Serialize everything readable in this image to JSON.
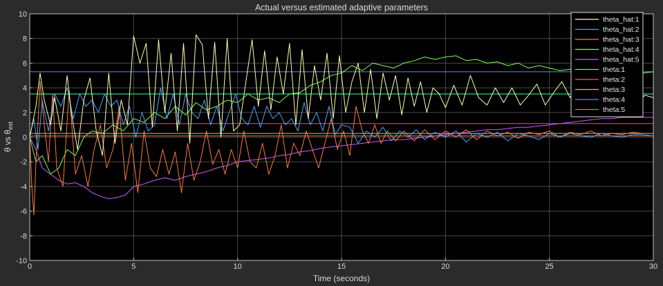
{
  "chart_data": {
    "type": "line",
    "title": "Actual versus estimated adaptive parameters",
    "xlabel": "Time (seconds)",
    "ylabel": "θ vs θ",
    "ylabel_subscript": "est",
    "xlim": [
      0,
      30
    ],
    "ylim": [
      -10,
      10
    ],
    "xticks": [
      0,
      5,
      10,
      15,
      20,
      25,
      30
    ],
    "yticks": [
      -10,
      -8,
      -6,
      -4,
      -2,
      0,
      2,
      4,
      6,
      8,
      10
    ],
    "grid": true,
    "legend_position": "top-right",
    "colors": {
      "figure_bg": "#2b2b2b",
      "axes_bg": "#000000",
      "grid": "#4a4a4a",
      "axes_edge": "#bfbfbf",
      "legend_bg": "#000000",
      "legend_edge": "#e0e0e0"
    },
    "series": [
      {
        "name": "theta_hat:1",
        "color": "#ffffb0",
        "x": [
          0,
          0.3,
          0.5,
          0.7,
          1.0,
          1.2,
          1.5,
          1.8,
          2.0,
          2.3,
          2.6,
          2.9,
          3.2,
          3.5,
          3.8,
          4.1,
          4.4,
          4.7,
          5.0,
          5.3,
          5.6,
          5.9,
          6.2,
          6.5,
          6.8,
          7.1,
          7.4,
          7.7,
          8.0,
          8.3,
          8.6,
          8.9,
          9.2,
          9.5,
          9.8,
          10.1,
          10.4,
          10.7,
          11.0,
          11.3,
          11.6,
          11.9,
          12.2,
          12.5,
          12.8,
          13.1,
          13.4,
          13.7,
          14.0,
          14.3,
          14.6,
          14.9,
          15.2,
          15.5,
          15.8,
          16.1,
          16.4,
          16.7,
          17.0,
          17.3,
          17.6,
          17.9,
          18.2,
          18.5,
          18.8,
          19.1,
          19.4,
          19.7,
          20.0,
          20.4,
          20.8,
          21.2,
          21.6,
          22.0,
          22.4,
          22.8,
          23.2,
          23.6,
          24.0,
          24.4,
          24.8,
          25.2,
          25.6,
          26.0,
          26.4,
          26.8,
          27.2,
          27.6,
          28.0,
          28.4,
          28.8,
          29.2,
          29.6,
          30.0
        ],
        "values": [
          0,
          2.5,
          5.2,
          3.0,
          1.0,
          3.2,
          0.5,
          5.0,
          2.0,
          -1.0,
          3.0,
          4.8,
          0.5,
          -1.5,
          5.2,
          -0.5,
          3.0,
          1.0,
          8.2,
          6.0,
          7.6,
          0.8,
          7.9,
          2.0,
          6.8,
          0.5,
          7.6,
          -0.5,
          8.3,
          7.5,
          1.5,
          7.7,
          0.0,
          8.0,
          0.5,
          1.0,
          4.5,
          7.9,
          2.5,
          7.0,
          2.2,
          6.5,
          3.5,
          7.6,
          1.0,
          7.1,
          1.5,
          5.8,
          3.0,
          6.8,
          1.5,
          6.6,
          2.0,
          4.5,
          6.0,
          2.0,
          5.5,
          1.5,
          5.2,
          3.0,
          5.0,
          1.8,
          4.8,
          2.5,
          4.5,
          2.0,
          4.0,
          3.5,
          2.4,
          4.2,
          2.6,
          5.0,
          3.2,
          2.6,
          4.0,
          2.8,
          4.0,
          2.6,
          3.4,
          4.3,
          2.6,
          3.6,
          4.5,
          3.2,
          4.4,
          2.6,
          3.6,
          4.0,
          2.5,
          3.2,
          3.6,
          2.8,
          3.4,
          3.2
        ]
      },
      {
        "name": "theta_hat:2",
        "color": "#4da6ff",
        "x": [
          0,
          0.2,
          0.4,
          0.6,
          0.9,
          1.2,
          1.5,
          1.8,
          2.1,
          2.4,
          2.7,
          3.0,
          3.3,
          3.6,
          3.9,
          4.2,
          4.5,
          4.8,
          5.1,
          5.4,
          5.7,
          6.0,
          6.3,
          6.6,
          6.9,
          7.2,
          7.5,
          7.8,
          8.1,
          8.4,
          8.7,
          9.0,
          9.3,
          9.6,
          9.9,
          10.2,
          10.5,
          10.8,
          11.1,
          11.4,
          11.7,
          12.0,
          12.3,
          12.6,
          12.9,
          13.2,
          13.5,
          13.8,
          14.1,
          14.4,
          14.7,
          15.0,
          15.4,
          15.8,
          16.2,
          16.6,
          17.0,
          17.4,
          17.8,
          18.2,
          18.6,
          19.0,
          19.5,
          20.0,
          20.5,
          21.0,
          21.5,
          22.0,
          22.5,
          23.0,
          23.5,
          24.0,
          24.5,
          25.0,
          25.5,
          26.0,
          26.5,
          27.0,
          27.5,
          28.0,
          28.5,
          29.0,
          29.5,
          30.0
        ],
        "values": [
          0,
          1.5,
          -1.0,
          3.0,
          0.5,
          3.5,
          2.5,
          4.0,
          1.5,
          3.5,
          2.5,
          3.0,
          2.0,
          3.5,
          2.5,
          3.0,
          1.0,
          2.5,
          0.0,
          2.0,
          0.5,
          1.0,
          4.0,
          1.5,
          3.5,
          1.0,
          3.5,
          2.0,
          1.5,
          3.0,
          1.0,
          2.5,
          0.5,
          2.0,
          3.5,
          1.5,
          1.0,
          2.5,
          0.8,
          2.5,
          1.5,
          2.0,
          1.0,
          1.5,
          0.5,
          2.8,
          1.0,
          2.0,
          0.5,
          2.5,
          0.2,
          1.0,
          0.8,
          -0.5,
          0.5,
          0.0,
          0.8,
          -0.3,
          0.5,
          0.0,
          0.6,
          -0.2,
          0.4,
          0.0,
          0.5,
          -0.4,
          0.3,
          0.0,
          0.4,
          -0.3,
          0.3,
          0.1,
          -0.2,
          0.3,
          0.0,
          0.3,
          0.1,
          0.0,
          0.3,
          0.1,
          0.0,
          0.2,
          0.2,
          0.1
        ]
      },
      {
        "name": "theta_hat:3",
        "color": "#ff7a3d",
        "x": [
          0,
          0.1,
          0.2,
          0.3,
          0.5,
          0.7,
          0.9,
          1.1,
          1.3,
          1.6,
          1.9,
          2.2,
          2.5,
          2.8,
          3.1,
          3.4,
          3.7,
          4.0,
          4.3,
          4.6,
          4.9,
          5.2,
          5.5,
          5.8,
          6.1,
          6.4,
          6.7,
          7.0,
          7.3,
          7.6,
          7.9,
          8.2,
          8.5,
          8.8,
          9.1,
          9.4,
          9.7,
          10.0,
          10.3,
          10.6,
          10.9,
          11.2,
          11.5,
          11.8,
          12.1,
          12.4,
          12.7,
          13.0,
          13.3,
          13.6,
          13.9,
          14.2,
          14.5,
          14.8,
          15.1,
          15.4,
          15.7,
          16.0,
          16.3,
          16.6,
          16.9,
          17.2,
          17.6,
          18.0,
          18.5,
          19.0,
          19.5,
          20.0,
          20.5,
          21.0,
          21.5,
          22.0,
          22.5,
          23.0,
          23.5,
          24.0,
          24.5,
          25.0,
          25.5,
          26.0,
          26.5,
          27.0,
          27.5,
          28.0,
          28.5,
          29.0,
          29.5,
          30.0
        ],
        "values": [
          0,
          -4.0,
          -6.3,
          -2.0,
          4.5,
          1.0,
          -2.0,
          3.5,
          -2.5,
          -4.0,
          3.8,
          -3.0,
          -1.5,
          -4.0,
          -1.0,
          1.0,
          -2.5,
          -1.0,
          2.5,
          -3.5,
          -0.5,
          -4.5,
          0.5,
          -2.5,
          -3.2,
          -1.0,
          -3.0,
          -1.2,
          -4.5,
          -0.5,
          -3.5,
          -2.0,
          0.5,
          -2.2,
          -1.0,
          -3.0,
          -1.0,
          -2.5,
          0.5,
          -2.0,
          -2.5,
          -0.5,
          -3.0,
          -1.5,
          1.0,
          -2.5,
          -0.5,
          -1.5,
          0.5,
          -1.0,
          -2.5,
          -0.5,
          1.5,
          -1.0,
          0.5,
          -1.5,
          2.5,
          0.5,
          -0.5,
          1.0,
          -0.5,
          0.5,
          -0.3,
          0.5,
          -0.3,
          0.6,
          -0.2,
          0.5,
          0.0,
          0.6,
          -0.2,
          0.5,
          0.1,
          0.4,
          -0.1,
          0.4,
          0.2,
          0.5,
          0.0,
          0.4,
          0.2,
          0.5,
          0.1,
          0.3,
          0.2,
          0.4,
          0.3,
          0.3
        ]
      },
      {
        "name": "theta_hat:4",
        "color": "#7dff5a",
        "x": [
          0,
          0.3,
          0.6,
          1.0,
          1.4,
          1.8,
          2.2,
          2.6,
          3.0,
          3.5,
          4.0,
          4.5,
          5.0,
          5.5,
          6.0,
          6.5,
          7.0,
          7.5,
          8.0,
          8.5,
          9.0,
          9.5,
          10.0,
          10.5,
          11.0,
          11.5,
          12.0,
          12.5,
          13.0,
          13.5,
          14.0,
          14.5,
          15.0,
          15.5,
          16.0,
          16.5,
          17.0,
          17.5,
          18.0,
          18.5,
          19.0,
          19.5,
          20.0,
          20.5,
          21.0,
          21.5,
          22.0,
          22.5,
          23.0,
          23.5,
          24.0,
          24.5,
          25.0,
          25.5,
          26.0,
          26.5,
          27.0,
          27.5,
          28.0,
          28.5,
          29.0,
          29.5,
          30.0
        ],
        "values": [
          0,
          -2.0,
          -1.5,
          -3.0,
          -2.5,
          -1.0,
          -1.5,
          0.0,
          0.5,
          0.3,
          1.0,
          0.5,
          1.5,
          1.2,
          2.0,
          1.5,
          2.5,
          1.8,
          2.8,
          2.2,
          2.5,
          3.0,
          2.8,
          3.5,
          3.0,
          3.2,
          2.8,
          3.5,
          3.6,
          4.2,
          4.5,
          5.0,
          5.2,
          5.8,
          5.4,
          6.0,
          5.8,
          5.6,
          6.0,
          6.2,
          6.5,
          6.3,
          6.5,
          6.6,
          6.2,
          6.3,
          6.0,
          6.1,
          5.8,
          6.0,
          5.6,
          5.8,
          5.6,
          5.4,
          5.5,
          5.3,
          5.5,
          5.2,
          5.4,
          5.2,
          5.3,
          5.2,
          5.3
        ]
      },
      {
        "name": "theta_hat:5",
        "color": "#d15bff",
        "x": [
          0,
          0.3,
          0.6,
          1.0,
          1.4,
          1.8,
          2.2,
          2.6,
          3.0,
          3.4,
          3.8,
          4.2,
          4.6,
          5.0,
          5.5,
          6.0,
          6.5,
          7.0,
          7.5,
          8.0,
          8.5,
          9.0,
          9.5,
          10.0,
          10.5,
          11.0,
          11.5,
          12.0,
          12.5,
          13.0,
          13.5,
          14.0,
          14.5,
          15.0,
          15.5,
          16.0,
          16.5,
          17.0,
          17.5,
          18.0,
          18.5,
          19.0,
          19.5,
          20.0,
          20.5,
          21.0,
          21.5,
          22.0,
          22.5,
          23.0,
          23.5,
          24.0,
          24.5,
          25.0,
          25.5,
          26.0,
          26.5,
          27.0,
          27.5,
          28.0,
          28.5,
          29.0,
          29.5,
          30.0
        ],
        "values": [
          0,
          -1.0,
          -2.5,
          -3.0,
          -3.5,
          -3.8,
          -3.7,
          -4.0,
          -4.5,
          -4.8,
          -5.0,
          -4.9,
          -4.7,
          -4.0,
          -3.8,
          -3.5,
          -3.3,
          -3.5,
          -3.2,
          -3.0,
          -2.8,
          -2.5,
          -2.3,
          -2.0,
          -1.9,
          -1.8,
          -1.7,
          -1.5,
          -1.4,
          -1.2,
          -1.1,
          -0.9,
          -0.8,
          -0.7,
          -0.6,
          -0.5,
          -0.4,
          -0.3,
          -0.2,
          -0.2,
          -0.1,
          0.0,
          0.1,
          0.2,
          0.3,
          0.4,
          0.5,
          0.6,
          0.6,
          0.7,
          0.8,
          0.8,
          0.9,
          1.0,
          1.1,
          1.2,
          1.3,
          1.4,
          1.5,
          1.5,
          1.6,
          1.6,
          1.6,
          1.6
        ]
      },
      {
        "name": "theta:1",
        "color": "#4dff9a",
        "x": [
          0,
          30
        ],
        "values": [
          3.5,
          3.5
        ]
      },
      {
        "name": "theta:2",
        "color": "#ff4a8a",
        "x": [
          0,
          30
        ],
        "values": [
          1.1,
          1.1
        ]
      },
      {
        "name": "theta:3",
        "color": "#f0c030",
        "x": [
          0,
          30
        ],
        "values": [
          0.3,
          0.3
        ]
      },
      {
        "name": "theta:4",
        "color": "#5a8cff",
        "x": [
          0,
          30
        ],
        "values": [
          5.3,
          5.3
        ]
      },
      {
        "name": "theta:5",
        "color": "#ff6a30",
        "x": [
          0,
          30
        ],
        "values": [
          0.1,
          0.1
        ]
      }
    ]
  }
}
